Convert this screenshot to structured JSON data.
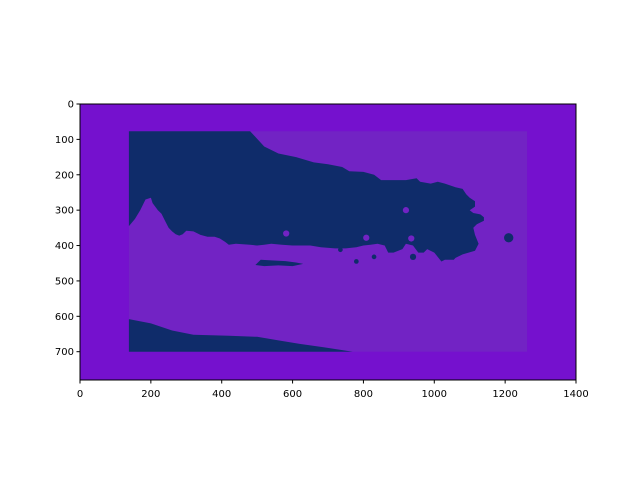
{
  "chart_data": {
    "type": "heatmap",
    "title": "",
    "xlabel": "",
    "ylabel": "",
    "xlim": [
      0,
      1400
    ],
    "ylim": [
      780,
      0
    ],
    "y_axis_inverted": true,
    "grid": false,
    "legend": "none",
    "x_ticks": [
      0,
      200,
      400,
      600,
      800,
      1000,
      1200,
      1400
    ],
    "y_ticks": [
      0,
      100,
      200,
      300,
      400,
      500,
      600,
      700
    ],
    "colors": {
      "background_region": "#7511ce",
      "inner_region": "#7223c4",
      "dark_region": "#0f2c6a"
    },
    "regions": [
      {
        "name": "outer-frame",
        "color_key": "background_region",
        "extent": {
          "x": [
            0,
            1400
          ],
          "y": [
            0,
            780
          ]
        }
      },
      {
        "name": "inner-rectangle",
        "color_key": "inner_region",
        "extent": {
          "x": [
            138,
            1262
          ],
          "y": [
            77,
            700
          ]
        }
      },
      {
        "name": "upper-dark-mass",
        "color_key": "dark_region",
        "polygon": [
          [
            138,
            77
          ],
          [
            480,
            77
          ],
          [
            520,
            120
          ],
          [
            560,
            140
          ],
          [
            610,
            150
          ],
          [
            660,
            165
          ],
          [
            700,
            170
          ],
          [
            740,
            178
          ],
          [
            760,
            190
          ],
          [
            800,
            192
          ],
          [
            830,
            200
          ],
          [
            850,
            215
          ],
          [
            880,
            215
          ],
          [
            920,
            215
          ],
          [
            950,
            210
          ],
          [
            960,
            220
          ],
          [
            990,
            225
          ],
          [
            1010,
            220
          ],
          [
            1030,
            225
          ],
          [
            1060,
            235
          ],
          [
            1080,
            240
          ],
          [
            1090,
            255
          ],
          [
            1100,
            265
          ],
          [
            1115,
            275
          ],
          [
            1115,
            290
          ],
          [
            1100,
            300
          ],
          [
            1110,
            308
          ],
          [
            1130,
            312
          ],
          [
            1140,
            320
          ],
          [
            1140,
            330
          ],
          [
            1120,
            340
          ],
          [
            1110,
            350
          ],
          [
            1115,
            370
          ],
          [
            1125,
            395
          ],
          [
            1115,
            415
          ],
          [
            1080,
            425
          ],
          [
            1060,
            435
          ],
          [
            1055,
            440
          ],
          [
            1030,
            440
          ],
          [
            1020,
            445
          ],
          [
            1000,
            420
          ],
          [
            980,
            410
          ],
          [
            970,
            420
          ],
          [
            955,
            420
          ],
          [
            940,
            400
          ],
          [
            920,
            395
          ],
          [
            910,
            410
          ],
          [
            885,
            420
          ],
          [
            870,
            420
          ],
          [
            860,
            400
          ],
          [
            840,
            395
          ],
          [
            820,
            398
          ],
          [
            800,
            400
          ],
          [
            780,
            405
          ],
          [
            750,
            408
          ],
          [
            720,
            408
          ],
          [
            680,
            405
          ],
          [
            650,
            400
          ],
          [
            620,
            400
          ],
          [
            600,
            400
          ],
          [
            570,
            398
          ],
          [
            540,
            395
          ],
          [
            520,
            398
          ],
          [
            500,
            400
          ],
          [
            480,
            398
          ],
          [
            440,
            395
          ],
          [
            420,
            398
          ],
          [
            410,
            390
          ],
          [
            395,
            380
          ],
          [
            380,
            375
          ],
          [
            360,
            375
          ],
          [
            340,
            370
          ],
          [
            320,
            360
          ],
          [
            300,
            358
          ],
          [
            290,
            368
          ],
          [
            280,
            372
          ],
          [
            270,
            368
          ],
          [
            260,
            360
          ],
          [
            250,
            350
          ],
          [
            240,
            330
          ],
          [
            230,
            310
          ],
          [
            220,
            300
          ],
          [
            205,
            280
          ],
          [
            200,
            265
          ],
          [
            185,
            270
          ],
          [
            170,
            300
          ],
          [
            155,
            325
          ],
          [
            138,
            345
          ]
        ]
      },
      {
        "name": "lower-dark-wedge",
        "color_key": "dark_region",
        "polygon": [
          [
            138,
            608
          ],
          [
            200,
            620
          ],
          [
            260,
            640
          ],
          [
            320,
            652
          ],
          [
            420,
            655
          ],
          [
            500,
            658
          ],
          [
            560,
            668
          ],
          [
            620,
            678
          ],
          [
            690,
            688
          ],
          [
            770,
            700
          ],
          [
            138,
            700
          ]
        ]
      },
      {
        "name": "mid-dark-streak",
        "color_key": "dark_region",
        "polygon": [
          [
            495,
            455
          ],
          [
            510,
            440
          ],
          [
            540,
            442
          ],
          [
            580,
            444
          ],
          [
            610,
            448
          ],
          [
            630,
            452
          ],
          [
            600,
            458
          ],
          [
            560,
            456
          ],
          [
            520,
            458
          ]
        ]
      }
    ],
    "specks": [
      {
        "x": 582,
        "y": 366,
        "color_key": "inner_region",
        "r": 4
      },
      {
        "x": 920,
        "y": 300,
        "color_key": "inner_region",
        "r": 4
      },
      {
        "x": 935,
        "y": 380,
        "color_key": "inner_region",
        "r": 4
      },
      {
        "x": 808,
        "y": 378,
        "color_key": "inner_region",
        "r": 4
      },
      {
        "x": 1210,
        "y": 378,
        "color_key": "dark_region",
        "r": 6
      },
      {
        "x": 780,
        "y": 445,
        "color_key": "dark_region",
        "r": 3
      },
      {
        "x": 830,
        "y": 432,
        "color_key": "dark_region",
        "r": 3
      },
      {
        "x": 735,
        "y": 412,
        "color_key": "dark_region",
        "r": 3
      },
      {
        "x": 940,
        "y": 432,
        "color_key": "dark_region",
        "r": 4
      }
    ]
  }
}
